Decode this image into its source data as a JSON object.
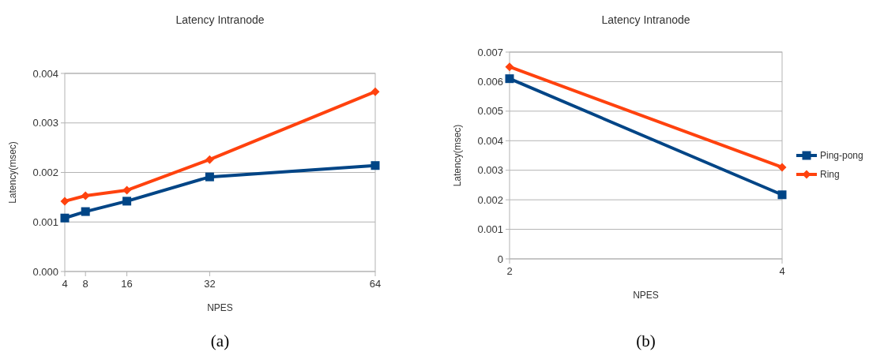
{
  "chart_data": [
    {
      "type": "line",
      "title": "Latency  Intranode",
      "xlabel": "NPES",
      "ylabel": "Latency(msec)",
      "x": [
        4,
        8,
        16,
        32,
        64
      ],
      "xlim": [
        4,
        64
      ],
      "xticks": [
        4,
        8,
        16,
        32,
        64
      ],
      "ylim": [
        0,
        0.004
      ],
      "yticks": [
        {
          "value": 0,
          "label": "0.000"
        },
        {
          "value": 0.001,
          "label": "0.001"
        },
        {
          "value": 0.002,
          "label": "0.002"
        },
        {
          "value": 0.003,
          "label": "0.003"
        },
        {
          "value": 0.004,
          "label": "0.004"
        }
      ],
      "grid": "y",
      "legend": false,
      "annotations": [
        "(a)"
      ],
      "series": [
        {
          "color": "#004586",
          "marker": "square",
          "values": [
            0.00108,
            0.00121,
            0.00142,
            0.00191,
            0.00214
          ]
        },
        {
          "color": "#ff420e",
          "marker": "diamond",
          "values": [
            0.00142,
            0.00153,
            0.00164,
            0.00226,
            0.00363
          ]
        }
      ]
    },
    {
      "type": "line",
      "title": "Latency  Intranode",
      "xlabel": "NPES",
      "ylabel": "Latency(msec)",
      "x": [
        2,
        4
      ],
      "xlim": [
        2,
        4
      ],
      "xticks": [
        2,
        4
      ],
      "ylim": [
        0,
        0.007
      ],
      "yticks": [
        0,
        0.001,
        0.002,
        0.003,
        0.004,
        0.005,
        0.006,
        0.007
      ],
      "grid": "y",
      "legend": "right",
      "annotations": [
        "(b)"
      ],
      "series": [
        {
          "name": "Ping-pong",
          "color": "#004586",
          "marker": "square",
          "values": [
            0.0061,
            0.00217
          ]
        },
        {
          "name": "Ring",
          "color": "#ff420e",
          "marker": "diamond",
          "values": [
            0.0065,
            0.0031
          ]
        }
      ]
    }
  ]
}
